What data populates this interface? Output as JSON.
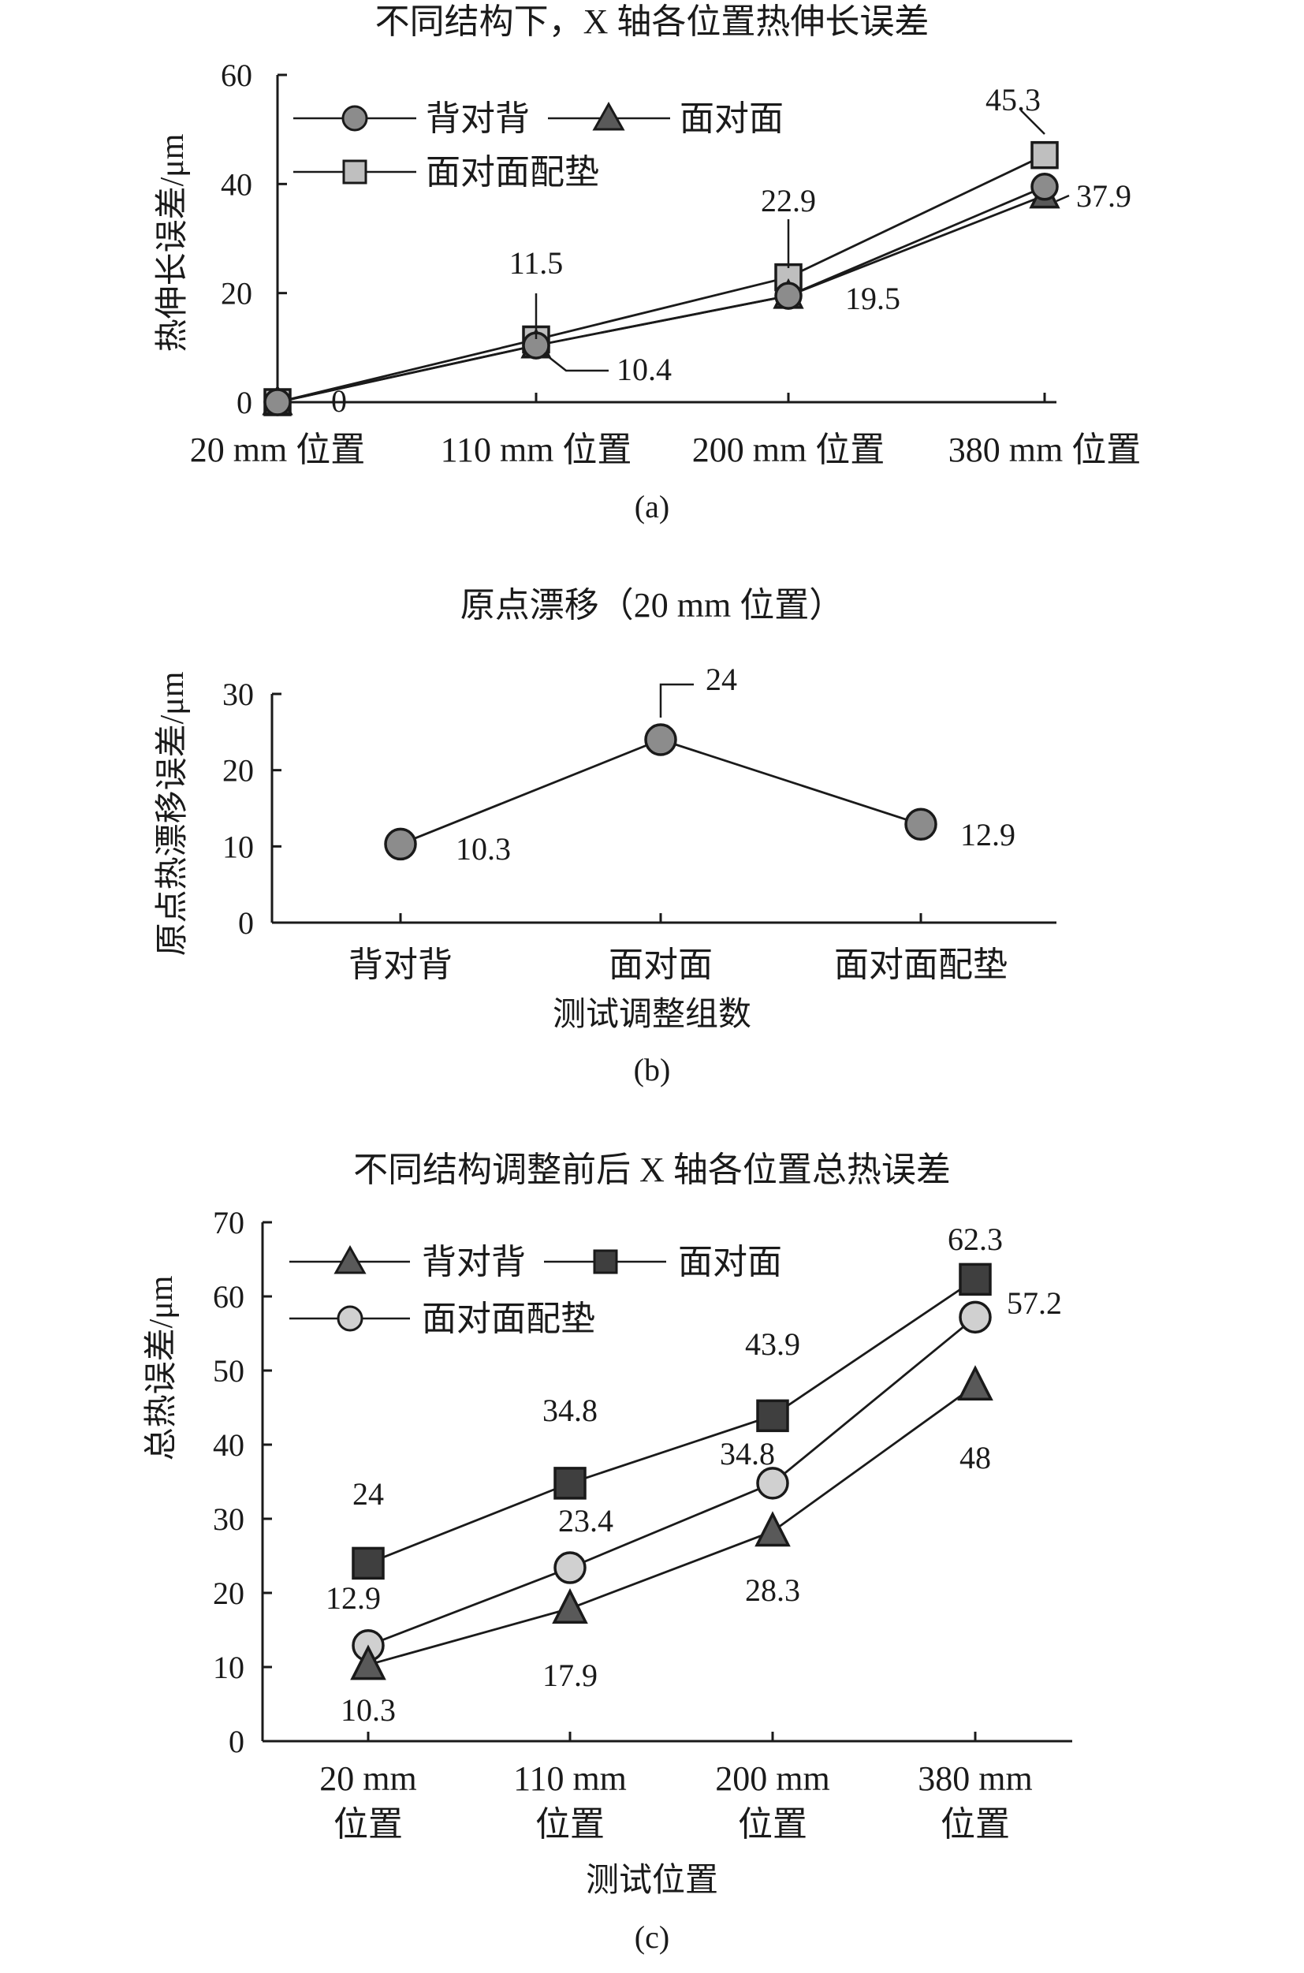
{
  "chart_data": [
    {
      "type": "line",
      "title": "不同结构下，X 轴各位置热伸长误差",
      "caption": "(a)",
      "categories": [
        "20 mm 位置",
        "110 mm 位置",
        "200 mm 位置",
        "380 mm 位置"
      ],
      "xlabel": "",
      "ylabel": "热伸长误差/μm",
      "ylim": [
        0,
        60
      ],
      "yticks": [
        0,
        20,
        40,
        60
      ],
      "grid": false,
      "legend_position": "top-left",
      "series": [
        {
          "name": "背对背",
          "marker": "circle",
          "color": "#8c8c8c",
          "values": [
            0,
            10.4,
            19.5,
            39.5
          ]
        },
        {
          "name": "面对面",
          "marker": "triangle",
          "color": "#595959",
          "values": [
            0,
            10.4,
            19.5,
            37.9
          ]
        },
        {
          "name": "面对面配垫",
          "marker": "square",
          "color": "#bfbfbf",
          "values": [
            0,
            11.5,
            22.9,
            45.3
          ]
        }
      ],
      "annotations": [
        "45.3",
        "37.9",
        "22.9",
        "19.5",
        "11.5",
        "10.4",
        "0"
      ]
    },
    {
      "type": "line",
      "title": "原点漂移（20 mm 位置）",
      "caption": "(b)",
      "categories": [
        "背对背",
        "面对面",
        "面对面配垫"
      ],
      "xlabel": "测试调整组数",
      "ylabel": "原点热漂移误差/μm",
      "ylim": [
        0,
        30
      ],
      "yticks": [
        0,
        10,
        20,
        30
      ],
      "grid": false,
      "series": [
        {
          "marker": "circle",
          "color": "#8c8c8c",
          "values": [
            10.3,
            24,
            12.9
          ]
        }
      ],
      "annotations": [
        "10.3",
        "24",
        "12.9"
      ]
    },
    {
      "type": "line",
      "title": "不同结构调整前后 X 轴各位置总热误差",
      "caption": "(c)",
      "categories": [
        "20 mm 位置",
        "110 mm 位置",
        "200 mm 位置",
        "380 mm 位置"
      ],
      "categories_lines": [
        [
          "20 mm",
          "位置"
        ],
        [
          "110 mm",
          "位置"
        ],
        [
          "200 mm",
          "位置"
        ],
        [
          "380 mm",
          "位置"
        ]
      ],
      "xlabel": "测试位置",
      "ylabel": "总热误差/μm",
      "ylim": [
        0,
        70
      ],
      "yticks": [
        0,
        10,
        20,
        30,
        40,
        50,
        60,
        70
      ],
      "grid": false,
      "legend_position": "top-left",
      "series": [
        {
          "name": "背对背",
          "marker": "triangle",
          "color": "#595959",
          "values": [
            10.3,
            17.9,
            28.3,
            48
          ]
        },
        {
          "name": "面对面",
          "marker": "square",
          "color": "#3f3f3f",
          "values": [
            24,
            34.8,
            43.9,
            62.3
          ]
        },
        {
          "name": "面对面配垫",
          "marker": "circle",
          "color": "#d0d0d0",
          "values": [
            12.9,
            23.4,
            34.8,
            57.2
          ]
        }
      ],
      "annotations": [
        "10.3",
        "17.9",
        "28.3",
        "48",
        "24",
        "34.8",
        "43.9",
        "62.3",
        "12.9",
        "23.4",
        "34.8",
        "57.2"
      ]
    }
  ]
}
